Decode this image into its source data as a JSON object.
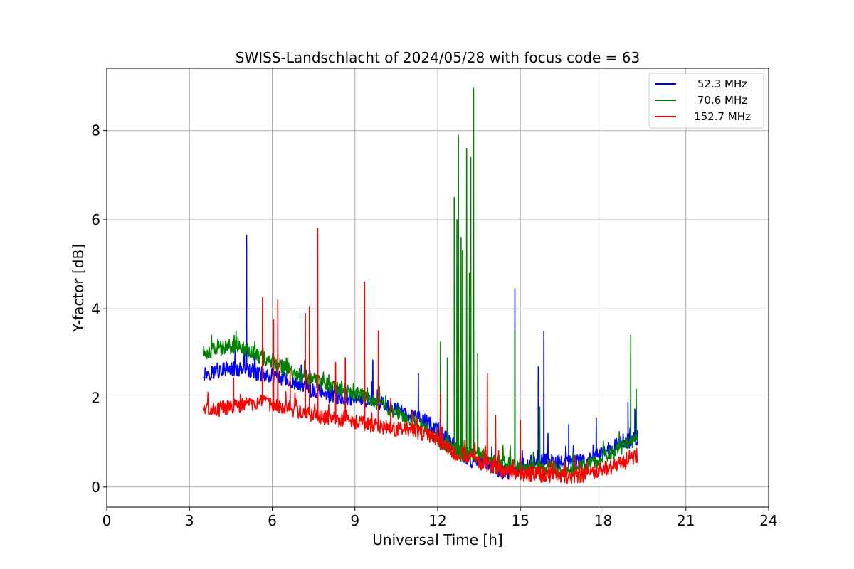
{
  "chart_data": {
    "type": "line",
    "title": "SWISS-Landschlacht of 2024/05/28 with focus code = 63",
    "xlabel": "Universal Time [h]",
    "ylabel": "Y-factor [dB]",
    "xlim": [
      0,
      24
    ],
    "ylim": [
      -0.45,
      9.4
    ],
    "xticks": [
      0,
      3,
      6,
      9,
      12,
      15,
      18,
      21,
      24
    ],
    "yticks": [
      0,
      2,
      4,
      6,
      8
    ],
    "grid": true,
    "legend_position": "top-right",
    "series": [
      {
        "name": "52.3 MHz",
        "color": "#0000ff",
        "x": [
          3.5,
          4.0,
          4.5,
          5.0,
          5.5,
          6.0,
          6.5,
          7.0,
          7.5,
          8.0,
          8.5,
          9.0,
          9.5,
          10.0,
          10.5,
          11.0,
          11.5,
          12.0,
          12.5,
          13.0,
          13.5,
          14.0,
          14.5,
          15.0,
          15.5,
          16.0,
          16.5,
          17.0,
          17.5,
          18.0,
          18.5,
          19.0,
          19.25
        ],
        "y": [
          2.55,
          2.6,
          2.65,
          2.65,
          2.55,
          2.5,
          2.4,
          2.3,
          2.15,
          2.05,
          2.0,
          2.0,
          1.95,
          1.85,
          1.75,
          1.6,
          1.5,
          1.3,
          1.0,
          0.65,
          0.55,
          0.45,
          0.3,
          0.4,
          0.55,
          0.6,
          0.55,
          0.55,
          0.6,
          0.8,
          0.95,
          1.05,
          1.1
        ],
        "spikes": [
          [
            5.07,
            5.65
          ],
          [
            8.65,
            2.3
          ],
          [
            9.65,
            2.85
          ],
          [
            11.3,
            2.55
          ],
          [
            14.8,
            4.45
          ],
          [
            15.65,
            2.7
          ],
          [
            15.85,
            3.5
          ],
          [
            16.0,
            1.2
          ],
          [
            16.75,
            1.4
          ],
          [
            17.75,
            1.55
          ],
          [
            18.9,
            1.9
          ],
          [
            19.15,
            1.75
          ]
        ]
      },
      {
        "name": "70.6 MHz",
        "color": "#008000",
        "x": [
          3.5,
          4.0,
          4.5,
          5.0,
          5.5,
          6.0,
          6.5,
          7.0,
          7.5,
          8.0,
          8.5,
          9.0,
          9.5,
          10.0,
          10.5,
          11.0,
          11.5,
          12.0,
          12.5,
          13.0,
          13.5,
          14.0,
          14.5,
          15.0,
          15.5,
          16.0,
          16.5,
          17.0,
          17.5,
          18.0,
          18.5,
          19.0,
          19.25
        ],
        "y": [
          3.0,
          3.1,
          3.15,
          3.1,
          2.95,
          2.8,
          2.65,
          2.5,
          2.4,
          2.3,
          2.2,
          2.1,
          2.0,
          1.85,
          1.7,
          1.5,
          1.35,
          1.1,
          0.85,
          0.7,
          0.75,
          0.6,
          0.5,
          0.5,
          0.45,
          0.45,
          0.4,
          0.4,
          0.5,
          0.65,
          0.85,
          1.0,
          1.1
        ],
        "spikes": [
          [
            12.1,
            3.25
          ],
          [
            12.35,
            2.9
          ],
          [
            12.6,
            6.5
          ],
          [
            12.7,
            6.0
          ],
          [
            12.75,
            7.9
          ],
          [
            12.85,
            5.6
          ],
          [
            12.9,
            5.3
          ],
          [
            13.05,
            7.6
          ],
          [
            13.15,
            4.8
          ],
          [
            13.2,
            7.4
          ],
          [
            13.3,
            8.95
          ],
          [
            13.45,
            3.0
          ],
          [
            14.8,
            3.55
          ],
          [
            15.7,
            1.8
          ],
          [
            19.0,
            3.4
          ],
          [
            19.2,
            2.2
          ]
        ]
      },
      {
        "name": "152.7 MHz",
        "color": "#ff0000",
        "x": [
          3.5,
          4.0,
          4.5,
          5.0,
          5.5,
          6.0,
          6.5,
          7.0,
          7.5,
          8.0,
          8.5,
          9.0,
          9.5,
          10.0,
          10.5,
          11.0,
          11.5,
          12.0,
          12.5,
          13.0,
          13.5,
          14.0,
          14.5,
          15.0,
          15.5,
          16.0,
          16.5,
          17.0,
          17.5,
          18.0,
          18.5,
          19.0,
          19.25
        ],
        "y": [
          1.75,
          1.75,
          1.8,
          1.85,
          1.9,
          1.85,
          1.8,
          1.7,
          1.6,
          1.55,
          1.5,
          1.45,
          1.4,
          1.35,
          1.3,
          1.3,
          1.2,
          1.05,
          0.8,
          0.65,
          0.55,
          0.45,
          0.35,
          0.3,
          0.3,
          0.25,
          0.25,
          0.25,
          0.3,
          0.4,
          0.5,
          0.6,
          0.7
        ],
        "spikes": [
          [
            4.6,
            2.45
          ],
          [
            5.65,
            4.25
          ],
          [
            6.05,
            3.75
          ],
          [
            6.2,
            4.2
          ],
          [
            6.65,
            2.65
          ],
          [
            7.2,
            3.9
          ],
          [
            7.35,
            4.05
          ],
          [
            7.65,
            5.8
          ],
          [
            8.3,
            2.8
          ],
          [
            8.65,
            2.9
          ],
          [
            9.35,
            4.6
          ],
          [
            9.85,
            3.5
          ],
          [
            10.3,
            2.0
          ],
          [
            11.1,
            1.7
          ],
          [
            12.1,
            2.1
          ],
          [
            13.8,
            2.55
          ],
          [
            14.1,
            1.6
          ],
          [
            15.0,
            1.5
          ]
        ]
      }
    ]
  }
}
